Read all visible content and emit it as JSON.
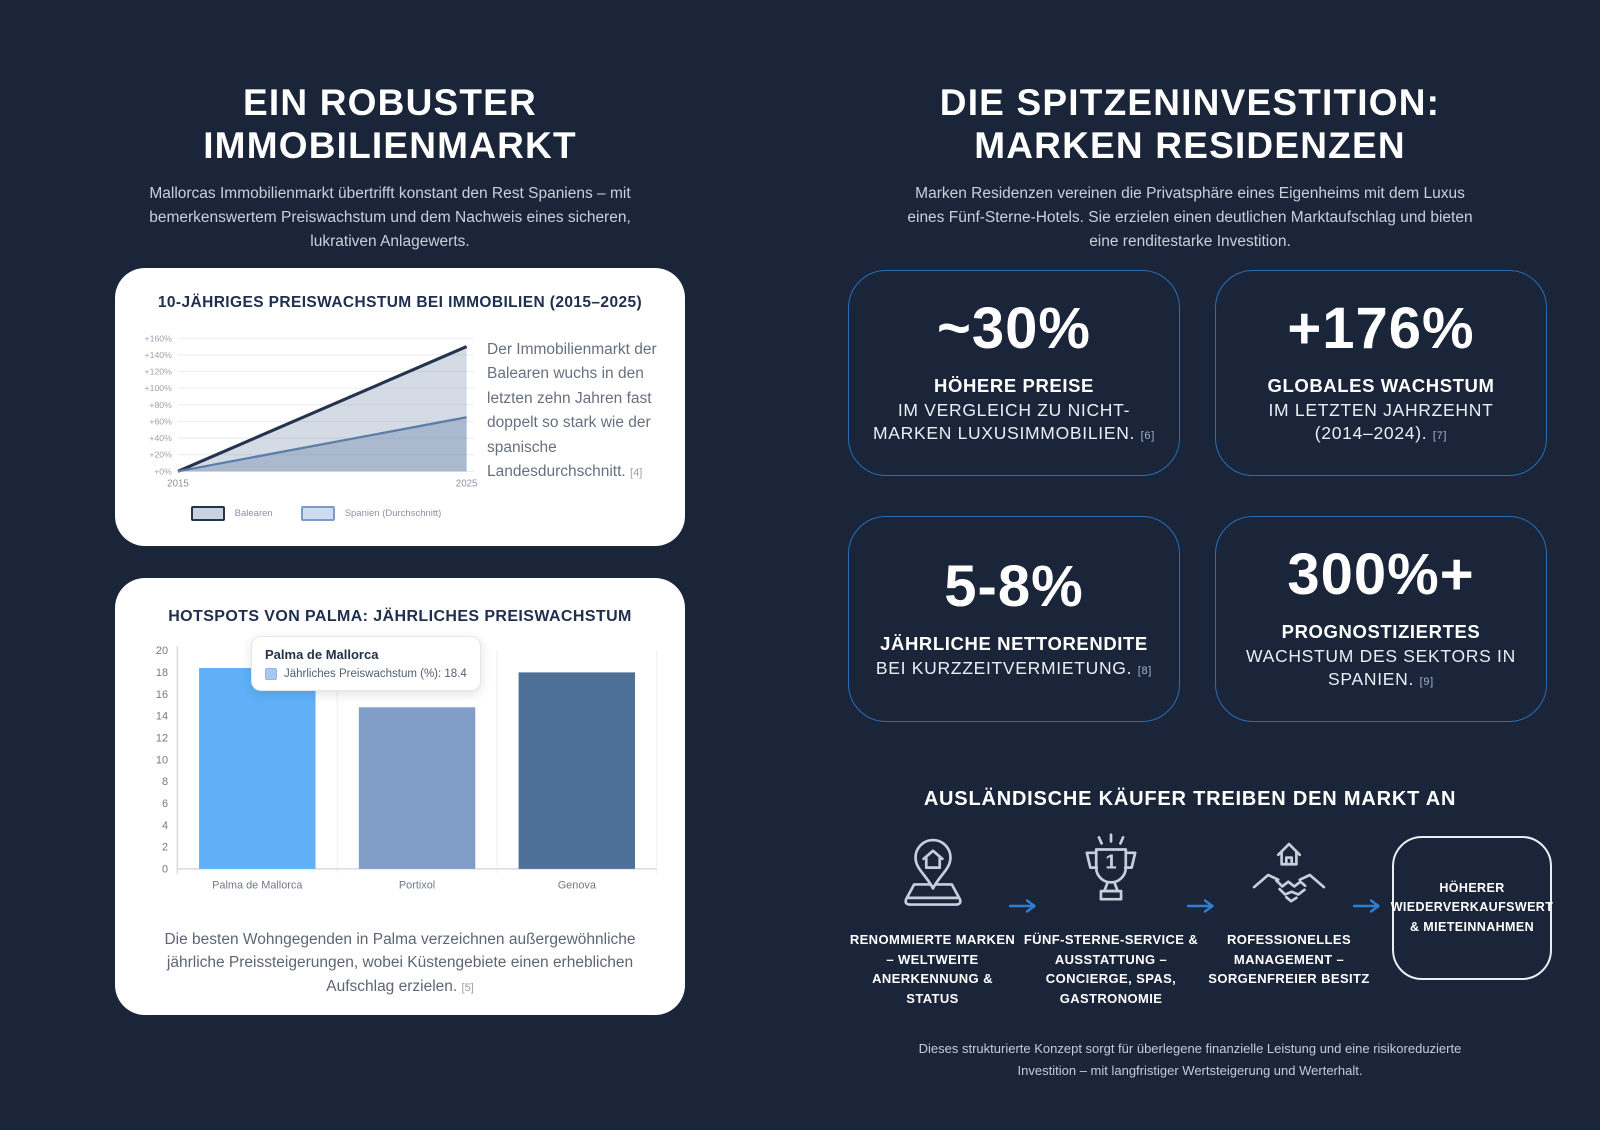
{
  "page": {
    "background": "#1b2539",
    "accent_blue": "#2d7fd3",
    "stat_border_blue": "#2a6cb5"
  },
  "left": {
    "title": "EIN ROBUSTER IMMOBILIENMARKT",
    "subtitle": "Mallorcas Immobilienmarkt übertrifft konstant den Rest Spaniens – mit bemerkenswertem Preiswachstum und dem Nachweis eines sicheren, lukrativen Anlagewerts.",
    "price_growth_card": {
      "side_text": "Der Immobilienmarkt der Balearen wuchs in den letzten zehn Jahren fast doppelt so stark wie der spanische Landesdurchschnitt.",
      "side_ref": "[4]"
    },
    "hotspots_card": {
      "caption": "Die besten Wohngegenden in Palma verzeichnen außergewöhnliche jährliche Preissteigerungen, wobei Küstengebiete einen erheblichen Aufschlag erzielen.",
      "caption_ref": "[5]"
    }
  },
  "right": {
    "title": "DIE SPITZENINVESTITION: MARKEN RESIDENZEN",
    "subtitle": "Marken Residenzen vereinen die Privatsphäre eines Eigenheims mit dem Luxus eines Fünf-Sterne-Hotels. Sie erzielen einen deutlichen Marktaufschlag und bieten eine renditestarke Investition.",
    "stats": [
      {
        "value": "~30%",
        "bold": "HÖHERE PREISE",
        "line1": "IM VERGLEICH ZU NICHT-",
        "line2": "MARKEN LUXUSIMMOBILIEN.",
        "ref": "[6]"
      },
      {
        "value": "+176%",
        "bold": "GLOBALES WACHSTUM",
        "line1": "IM LETZTEN JAHRZEHNT",
        "line2": "(2014–2024).",
        "ref": "[7]"
      },
      {
        "value": "5-8%",
        "bold": "JÄHRLICHE NETTORENDITE",
        "line1": "",
        "line2": "BEI KURZZEITVERMIETUNG.",
        "ref": "[8]"
      },
      {
        "value": "300%+",
        "bold": "PROGNOSTIZIERTES",
        "line1": "WACHSTUM DES SEKTORS IN",
        "line2": "SPANIEN.",
        "ref": "[9]"
      }
    ],
    "drivers": {
      "heading": "AUSLÄNDISCHE KÄUFER TREIBEN DEN MARKT AN",
      "items": [
        {
          "icon": "map-pin-house-icon",
          "label": "RENOMMIERTE MARKEN – WELTWEITE ANERKENNUNG & STATUS"
        },
        {
          "icon": "trophy-icon",
          "trophy_number": "1",
          "label": "FÜNF-STERNE-SERVICE & AUSSTATTUNG – CONCIERGE, SPAS, GASTRONOMIE"
        },
        {
          "icon": "handshake-house-icon",
          "label": "ROFESSIONELLES MANAGEMENT – SORGENFREIER BESITZ"
        },
        {
          "icon": "rounded-badge",
          "label": "HÖHERER WIEDERVERKAUFSWERT & MIETEINNAHMEN"
        }
      ]
    },
    "footer": "Dieses strukturierte Konzept sorgt für überlegene finanzielle Leistung und eine risikoreduzierte Investition – mit langfristiger Wertsteigerung und Werterhalt."
  },
  "chart_data": [
    {
      "type": "line",
      "title": "10-JÄHRIGES PREISWACHSTUM BEI IMMOBILIEN (2015–2025)",
      "x": [
        2015,
        2025
      ],
      "series": [
        {
          "name": "Balearen",
          "values": [
            0,
            150
          ],
          "color": "#24344e",
          "fill": "rgba(145,160,185,0.38)"
        },
        {
          "name": "Spanien (Durchschnitt)",
          "values": [
            0,
            65
          ],
          "color": "#5b7ea9",
          "fill": "rgba(120,145,180,0.45)"
        }
      ],
      "xlabel": "",
      "ylabel": "",
      "ylim": [
        0,
        160
      ],
      "ytick_step": 20,
      "ytick_format": "+{v}%",
      "grid": true,
      "legend_position": "bottom"
    },
    {
      "type": "bar",
      "title": "HOTSPOTS VON PALMA: JÄHRLICHES PREISWACHSTUM",
      "categories": [
        "Palma de Mallorca",
        "Portixol",
        "Genova"
      ],
      "values": [
        18.4,
        14.8,
        18.0
      ],
      "bar_colors": [
        "#5fb0f7",
        "#7f9dc7",
        "#4d7099"
      ],
      "xlabel": "",
      "ylabel": "",
      "ylim": [
        0,
        20
      ],
      "ytick_step": 2,
      "grid": false,
      "tooltip": {
        "category": "Palma de Mallorca",
        "label": "Jährliches Preiswachstum (%): 18.4",
        "swatch_color": "#a9c9ec"
      }
    }
  ]
}
